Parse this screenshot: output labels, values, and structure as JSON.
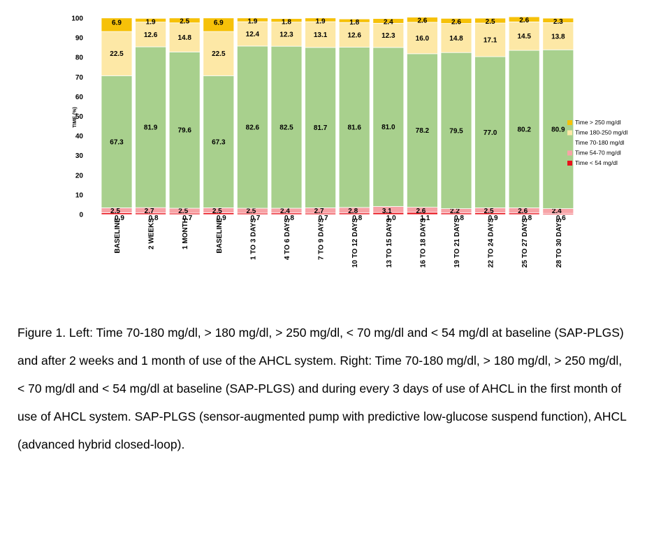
{
  "chart_data": {
    "type": "bar",
    "stacked": true,
    "ylabel": "TIME (%)",
    "ylim": [
      0,
      100
    ],
    "yticks": [
      0,
      10,
      20,
      30,
      40,
      50,
      60,
      70,
      80,
      90,
      100
    ],
    "legend_position": "right",
    "categories": [
      "BASELINE",
      "2 WEEKS",
      "1 MONTH",
      "BASELINE",
      "1 TO 3 DAYS",
      "4 TO 6 DAYS",
      "7 TO 9 DAYS",
      "10 TO 12 DAYS",
      "13 TO 15 DAYS",
      "16 TO 18 DAYS",
      "19 TO 21 DAYS",
      "22 TO 24 DAYS",
      "25 TO 27 DAYS",
      "28 TO  30 DAYS"
    ],
    "series": [
      {
        "name": "Time < 54 mg/dl",
        "color": "#e8121b",
        "values": [
          0.9,
          0.8,
          0.7,
          0.9,
          0.7,
          0.8,
          0.7,
          0.8,
          1.0,
          1.1,
          0.8,
          0.9,
          0.8,
          0.6
        ]
      },
      {
        "name": "Time 54-70 mg/dl",
        "color": "#f7a3a6",
        "values": [
          2.5,
          2.7,
          2.5,
          2.5,
          2.5,
          2.4,
          2.7,
          2.8,
          3.1,
          2.6,
          2.2,
          2.5,
          2.6,
          2.4
        ]
      },
      {
        "name": "Time 70-180 mg/dl",
        "color": "#a8d08d",
        "values": [
          67.3,
          81.9,
          79.6,
          67.3,
          82.6,
          82.5,
          81.7,
          81.6,
          81.0,
          78.2,
          79.5,
          77.0,
          80.2,
          80.9
        ]
      },
      {
        "name": "Time 180-250 mg/dl",
        "color": "#fde8a6",
        "values": [
          22.5,
          12.6,
          14.8,
          22.5,
          12.4,
          12.3,
          13.1,
          12.6,
          12.3,
          16.0,
          14.8,
          17.1,
          14.5,
          13.8
        ]
      },
      {
        "name": "Time > 250 mg/dl",
        "color": "#f6c109",
        "values": [
          6.9,
          1.9,
          2.5,
          6.9,
          1.9,
          1.8,
          1.9,
          1.8,
          2.4,
          2.6,
          2.6,
          2.5,
          2.6,
          2.3
        ]
      }
    ]
  },
  "caption": "Figure 1. Left: Time 70-180 mg/dl, > 180 mg/dl, > 250 mg/dl, < 70 mg/dl and < 54 mg/dl at baseline (SAP-PLGS) and after 2 weeks and 1 month of use of the AHCL system. Right: Time 70-180 mg/dl, > 180 mg/dl, > 250 mg/dl, < 70 mg/dl and < 54 mg/dl at baseline (SAP-PLGS) and during every 3 days of use of AHCL in the first month of use of AHCL system. SAP-PLGS (sensor-augmented pump with predictive low-glucose suspend function), AHCL (advanced hybrid closed-loop)."
}
